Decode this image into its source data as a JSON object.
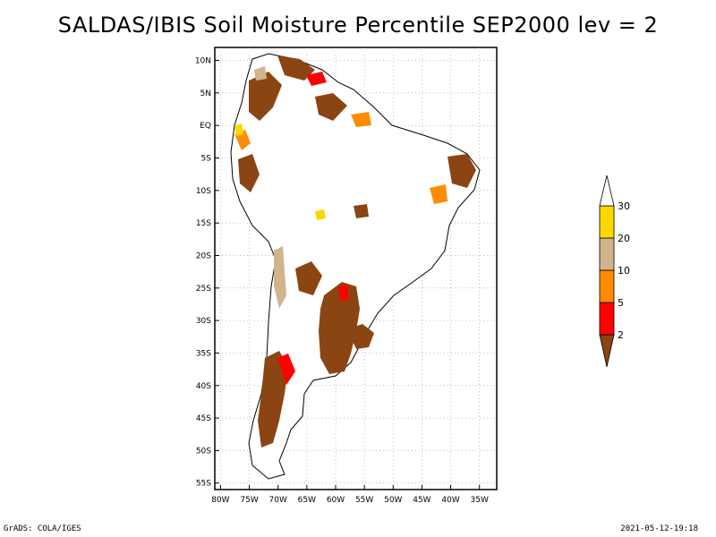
{
  "title": "SALDAS/IBIS Soil Moisture Percentile SEP2000 lev = 2",
  "chart_data": {
    "type": "heatmap",
    "title": "SALDAS/IBIS Soil Moisture Percentile SEP2000 lev = 2",
    "variable": "Soil moisture percentile",
    "month": "SEP2000",
    "level": 2,
    "lon_range": [
      -81,
      -32
    ],
    "lat_range": [
      -56,
      12
    ],
    "lat_ticks": [
      "10N",
      "5N",
      "EQ",
      "5S",
      "10S",
      "15S",
      "20S",
      "25S",
      "30S",
      "35S",
      "40S",
      "45S",
      "50S",
      "55S"
    ],
    "lat_values": [
      10,
      5,
      0,
      -5,
      -10,
      -15,
      -20,
      -25,
      -30,
      -35,
      -40,
      -45,
      -50,
      -55
    ],
    "lon_ticks": [
      "80W",
      "75W",
      "70W",
      "65W",
      "60W",
      "55W",
      "50W",
      "45W",
      "40W",
      "35W"
    ],
    "lon_values": [
      -80,
      -75,
      -70,
      -65,
      -60,
      -55,
      -50,
      -45,
      -40,
      -35
    ],
    "legend": {
      "labels": [
        "2",
        "5",
        "10",
        "20",
        "30"
      ],
      "colors": [
        "#8b4513",
        "#ff0000",
        "#ff8c00",
        "#d2b48c",
        "#ffd700",
        "#ffffff"
      ]
    }
  },
  "footer": {
    "left": "GrADS: COLA/IGES",
    "right": "2021-05-12-19:18"
  }
}
